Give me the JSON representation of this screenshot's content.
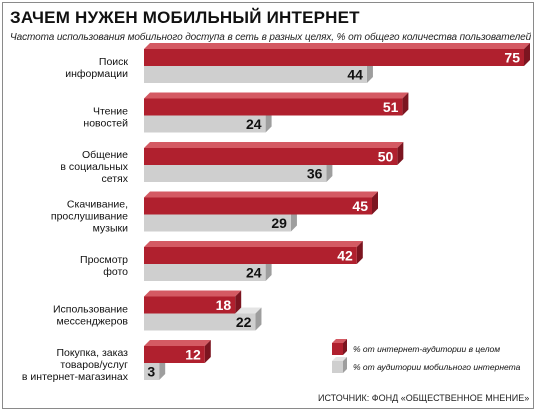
{
  "header": {
    "title": "ЗАЧЕМ НУЖЕН МОБИЛЬНЫЙ ИНТЕРНЕТ",
    "subtitle": "Частота использования мобильного доступа в сеть в разных целях, % от общего количества пользователей",
    "source": "ИСТОЧНИК: ФОНД «ОБЩЕСТВЕННОЕ МНЕНИЕ»"
  },
  "colors": {
    "red_front": "#b0202e",
    "red_top": "#d45a63",
    "red_side": "#7c1520",
    "gray_front": "#cfcfcf",
    "gray_top": "#e4e4e4",
    "gray_side": "#9e9e9e"
  },
  "chart_data": {
    "type": "bar",
    "orientation": "horizontal",
    "categories": [
      [
        "Поиск",
        "информации"
      ],
      [
        "Чтение",
        "новостей"
      ],
      [
        "Общение",
        "в социальных",
        "сетях"
      ],
      [
        "Скачивание,",
        "прослушивание",
        "музыки"
      ],
      [
        "Просмотр",
        "фото"
      ],
      [
        "Использование",
        "мессенджеров"
      ],
      [
        "Покупка, заказ",
        "товаров/услуг",
        "в интернет-магазинах"
      ]
    ],
    "series": [
      {
        "name": "% от интернет-аудитории в целом",
        "values": [
          75,
          51,
          50,
          45,
          42,
          18,
          12
        ]
      },
      {
        "name": "% от аудитории мобильного интернета",
        "values": [
          44,
          24,
          36,
          29,
          24,
          22,
          3
        ]
      }
    ],
    "xlim": [
      0,
      75
    ],
    "grid": false,
    "legend_position": "bottom-right"
  }
}
